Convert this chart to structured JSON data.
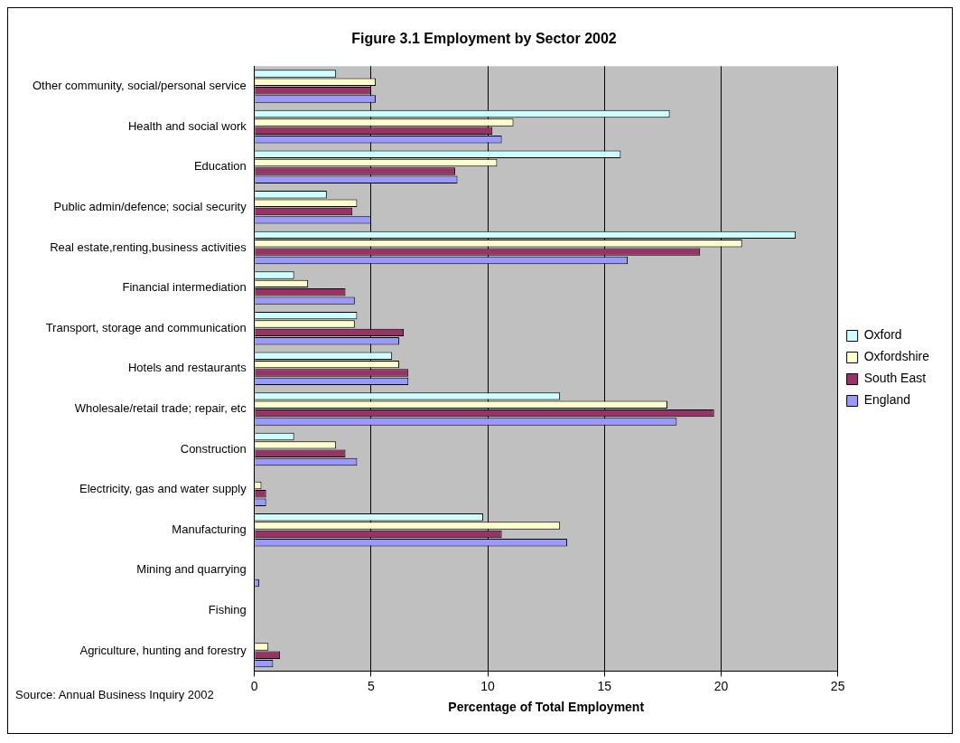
{
  "chart_data": {
    "type": "bar",
    "orientation": "horizontal",
    "title": "Figure 3.1 Employment by Sector 2002",
    "xlabel": "Percentage of Total Employment",
    "categories": [
      "Other community, social/personal service",
      "Health and social work",
      "Education",
      "Public admin/defence; social security",
      "Real estate,renting,business activities",
      "Financial intermediation",
      "Transport, storage and communication",
      "Hotels and restaurants",
      "Wholesale/retail trade; repair, etc",
      "Construction",
      "Electricity, gas and water supply",
      "Manufacturing",
      "Mining and quarrying",
      "Fishing",
      "Agriculture, hunting and forestry"
    ],
    "series": [
      {
        "name": "Oxford",
        "color": "#ccffff",
        "values": [
          3.5,
          17.8,
          15.7,
          3.1,
          23.2,
          1.7,
          4.4,
          5.9,
          13.1,
          1.7,
          0,
          9.8,
          0,
          0,
          0
        ]
      },
      {
        "name": "Oxfordshire",
        "color": "#ffffcc",
        "values": [
          5.2,
          11.1,
          10.4,
          4.4,
          20.9,
          2.3,
          4.3,
          6.2,
          17.7,
          3.5,
          0.3,
          13.1,
          0,
          0,
          0.6
        ]
      },
      {
        "name": "South East",
        "color": "#993366",
        "values": [
          5.0,
          10.2,
          8.6,
          4.2,
          19.1,
          3.9,
          6.4,
          6.6,
          19.7,
          3.9,
          0.5,
          10.6,
          0,
          0,
          1.1
        ]
      },
      {
        "name": "England",
        "color": "#9999ff",
        "values": [
          5.2,
          10.6,
          8.7,
          5.0,
          16.0,
          4.3,
          6.2,
          6.6,
          18.1,
          4.4,
          0.5,
          13.4,
          0.2,
          0,
          0.8
        ]
      }
    ],
    "xlim": [
      0,
      25
    ],
    "xticks": [
      0,
      5,
      10,
      15,
      20,
      25
    ],
    "grid": "x",
    "legend": "right",
    "annotations": [
      "Source: Annual Business Inquiry 2002"
    ]
  }
}
